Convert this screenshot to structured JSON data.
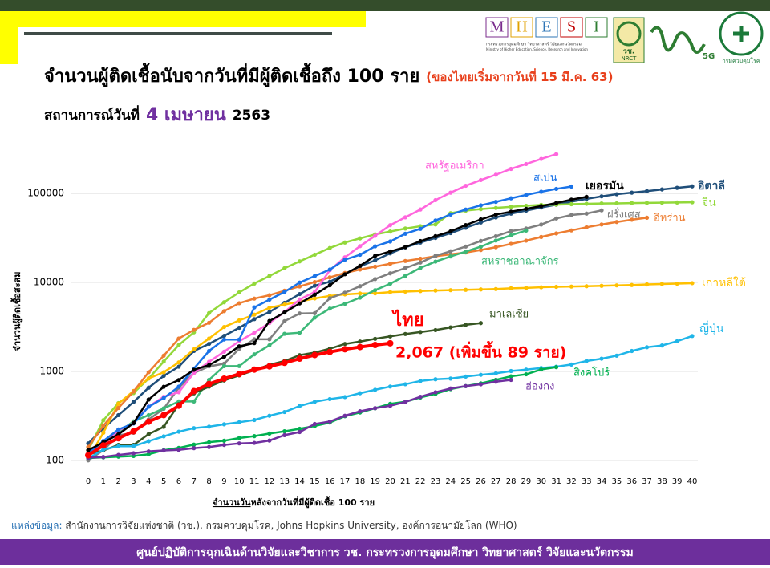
{
  "header": {
    "logo_letters": [
      "M",
      "H",
      "E",
      "S",
      "I"
    ],
    "logo_caption": "กระทรวงการอุดมศึกษา วิทยาศาสตร์ วิจัยและนวัตกรรม",
    "logo_caption_en": "Ministry of Higher Education, Science, Research and Innovation",
    "nrct_thai": "วช.",
    "nrct": "NRCT",
    "g5": "5G",
    "ddc": "กรมควบคุมโรค"
  },
  "chart_data": {
    "type": "line",
    "log_scale": true,
    "title": "จำนวนผู้ติดเชื้อนับจากวันที่มีผู้ติดเชื้อถึง 100 ราย",
    "title_note": "(ของไทยเริ่มจากวันที่ 15 มี.ค. 63)",
    "subtitle": "สถานการณ์วันที่",
    "subtitle_date": "4 เมษายน",
    "subtitle_year": "2563",
    "y_label": "จำนวนผู้ติดเชื้อสะสม",
    "x_label_underlined": "จำนวนวัน",
    "x_label": "หลังจากวันที่มีผู้ติดเชื้อ 100 ราย",
    "annotation": "2,067 (เพิ่มขึ้น 89 ราย)",
    "xlim": [
      0,
      40
    ],
    "xticks": [
      0,
      1,
      2,
      3,
      4,
      5,
      6,
      7,
      8,
      9,
      10,
      11,
      12,
      13,
      14,
      15,
      16,
      17,
      18,
      19,
      20,
      21,
      22,
      23,
      24,
      25,
      26,
      27,
      28,
      29,
      30,
      31,
      32,
      33,
      34,
      35,
      36,
      37,
      38,
      39,
      40
    ],
    "ylim": [
      70,
      300000
    ],
    "yticks": [
      100,
      1000,
      10000,
      100000
    ],
    "grid": true,
    "series": [
      {
        "name": "อิตาลี",
        "color": "#1f4e79",
        "values": [
          155,
          229,
          322,
          453,
          655,
          888,
          1128,
          1694,
          2036,
          2502,
          3089,
          3858,
          4636,
          5883,
          7375,
          9172,
          10149,
          12462,
          15113,
          17660,
          21157,
          24747,
          27980,
          31506,
          35713,
          41035,
          47021,
          53578,
          59138,
          63927,
          69176,
          74386,
          80589,
          86498,
          92472,
          97689,
          101739,
          105792,
          110574,
          115242,
          119827
        ]
      },
      {
        "name": "จีน",
        "color": "#92d83a",
        "values": [
          130,
          282,
          440,
          571,
          830,
          1287,
          1975,
          2744,
          4515,
          5974,
          7711,
          9692,
          11791,
          14380,
          17205,
          20440,
          24324,
          28018,
          31161,
          34546,
          37198,
          40171,
          42638,
          44653,
          59804,
          63851,
          66492,
          68500,
          70548,
          72436,
          74185,
          74576,
          75465,
          76288,
          76936,
          77150,
          77658,
          78064,
          78497,
          78824,
          79251
        ]
      },
      {
        "name": "เกาหลีใต้",
        "color": "#ffc000",
        "values": [
          104,
          204,
          433,
          602,
          833,
          977,
          1261,
          1766,
          2337,
          3150,
          3736,
          4335,
          5186,
          5621,
          6088,
          6593,
          7041,
          7314,
          7478,
          7513,
          7755,
          7869,
          7979,
          8086,
          8162,
          8236,
          8320,
          8413,
          8565,
          8652,
          8799,
          8897,
          8961,
          9037,
          9137,
          9241,
          9332,
          9478,
          9583,
          9661,
          9786
        ]
      },
      {
        "name": "อิหร่าน",
        "color": "#ed7d31",
        "values": [
          141,
          245,
          388,
          593,
          978,
          1501,
          2336,
          2922,
          3513,
          4747,
          5823,
          6566,
          7161,
          8042,
          9000,
          10075,
          11364,
          12729,
          13938,
          14991,
          16169,
          17361,
          18407,
          19644,
          20610,
          21638,
          23049,
          24811,
          27017,
          29406,
          32332,
          35408,
          38309,
          41495,
          44605,
          47593,
          50468,
          53183
        ]
      },
      {
        "name": "ฝรั่งเศส",
        "color": "#7f7f7f",
        "values": [
          100,
          130,
          191,
          204,
          288,
          380,
          656,
          959,
          1136,
          1219,
          1794,
          2293,
          2293,
          3661,
          4469,
          4499,
          6633,
          7652,
          9043,
          10871,
          12612,
          14459,
          16689,
          19856,
          22304,
          25233,
          29155,
          32964,
          37575,
          40174,
          44550,
          52128,
          56989,
          59105,
          64338
        ]
      },
      {
        "name": "สหราชอาณาจักร",
        "color": "#3cb878",
        "values": [
          116,
          164,
          207,
          274,
          322,
          384,
          459,
          459,
          802,
          1144,
          1145,
          1551,
          1960,
          2642,
          2716,
          4014,
          5067,
          5745,
          6726,
          8164,
          9640,
          11812,
          14543,
          17089,
          19522,
          22141,
          25150,
          29474,
          33718,
          38168
        ]
      },
      {
        "name": "สหรัฐอเมริกา",
        "color": "#ff66dd",
        "values": [
          118,
          149,
          217,
          262,
          402,
          518,
          583,
          959,
          1281,
          1663,
          2179,
          2727,
          3499,
          4632,
          6421,
          7786,
          13680,
          19101,
          25493,
          33276,
          43847,
          53740,
          65778,
          83836,
          101657,
          121478,
          140886,
          161807,
          188172,
          213372,
          243453,
          275586
        ]
      },
      {
        "name": "สเปน",
        "color": "#1a73e8",
        "values": [
          120,
          165,
          222,
          259,
          400,
          500,
          673,
          1073,
          1695,
          2277,
          2277,
          5232,
          6391,
          7798,
          9942,
          11748,
          13910,
          17963,
          20410,
          25374,
          28768,
          35136,
          39885,
          49515,
          57786,
          65719,
          73235,
          80110,
          87956,
          95923,
          104118,
          112065,
          119199
        ]
      },
      {
        "name": "เยอรมัน",
        "color": "#000000",
        "values": [
          130,
          159,
          196,
          262,
          482,
          670,
          799,
          1040,
          1176,
          1457,
          1908,
          2078,
          3675,
          4585,
          5795,
          7272,
          9257,
          12327,
          15320,
          19848,
          22213,
          24873,
          29056,
          32986,
          37323,
          43938,
          50871,
          57695,
          62095,
          66885,
          71808,
          77872,
          84794,
          91159
        ]
      },
      {
        "name": "มาเลเซีย",
        "color": "#375623",
        "values": [
          117,
          129,
          149,
          149,
          197,
          238,
          428,
          566,
          673,
          790,
          900,
          1030,
          1183,
          1306,
          1518,
          1624,
          1796,
          2031,
          2161,
          2320,
          2470,
          2626,
          2766,
          2908,
          3116,
          3333,
          3483
        ]
      },
      {
        "name": "ญี่ปุ่น",
        "color": "#1fb5e8",
        "values": [
          105,
          132,
          144,
          144,
          164,
          186,
          210,
          230,
          239,
          254,
          268,
          284,
          317,
          349,
          408,
          455,
          488,
          514,
          568,
          620,
          675,
          716,
          780,
          814,
          829,
          873,
          914,
          950,
          1007,
          1046,
          1089,
          1128,
          1193,
          1307,
          1387,
          1499,
          1693,
          1866,
          1953,
          2178,
          2495
        ]
      },
      {
        "name": "สิงคโปร์",
        "color": "#00b050",
        "values": [
          106,
          108,
          110,
          112,
          117,
          130,
          138,
          150,
          160,
          166,
          178,
          187,
          200,
          212,
          226,
          243,
          266,
          313,
          345,
          385,
          432,
          455,
          509,
          558,
          631,
          683,
          732,
          802,
          879,
          926,
          1049,
          1114
        ]
      },
      {
        "name": "ฮ่องกง",
        "color": "#7030a0",
        "values": [
          107,
          109,
          115,
          120,
          126,
          129,
          131,
          137,
          141,
          149,
          155,
          157,
          167,
          192,
          208,
          256,
          273,
          317,
          356,
          386,
          410,
          453,
          518,
          582,
          641,
          682,
          715,
          765,
          802
        ]
      },
      {
        "name": "ไทย",
        "color": "#ff0000",
        "values": [
          114,
          147,
          177,
          212,
          272,
          322,
          411,
          599,
          721,
          827,
          934,
          1045,
          1136,
          1245,
          1388,
          1524,
          1651,
          1771,
          1875,
          1978,
          2067
        ]
      }
    ]
  },
  "footer": {
    "source_label": "แหล่งข้อมูล:",
    "source": " สำนักงานการวิจัยแห่งชาติ (วช.), กรมควบคุมโรค, Johns Hopkins University, องค์การอนามัยโลก (WHO)",
    "banner": "ศูนย์ปฏิบัติการฉุกเฉินด้านวิจัยและวิชาการ   วช.   กระทรวงการอุดมศึกษา วิทยาศาสตร์ วิจัยและนวัตกรรม"
  }
}
